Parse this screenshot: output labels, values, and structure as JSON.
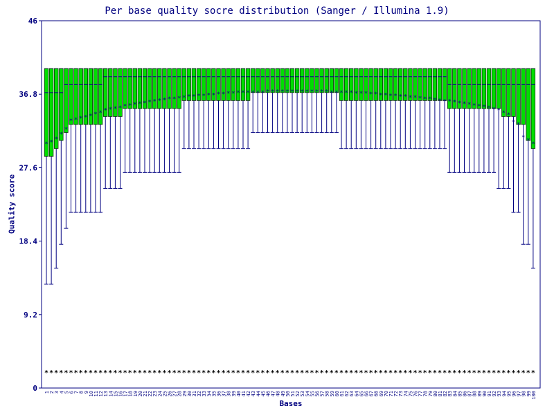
{
  "chart_data": {
    "type": "box",
    "title": "Per base quality socre distribution (Sanger / Illumina 1.9)",
    "xlabel": "Bases",
    "ylabel": "Quality score",
    "ylim": [
      0,
      46
    ],
    "yticks": [
      "0",
      "9.2",
      "18.4",
      "27.6",
      "36.8",
      "46"
    ],
    "categories": [
      "1",
      "2",
      "3",
      "4",
      "5",
      "6",
      "7",
      "8",
      "9",
      "10",
      "11",
      "12",
      "13",
      "14",
      "15",
      "16",
      "17",
      "18",
      "19",
      "20",
      "21",
      "22",
      "23",
      "24",
      "25",
      "26",
      "27",
      "28",
      "29",
      "30",
      "31",
      "32",
      "33",
      "34",
      "35",
      "36",
      "37",
      "38",
      "39",
      "40",
      "41",
      "42",
      "43",
      "44",
      "45",
      "46",
      "47",
      "48",
      "49",
      "50",
      "51",
      "52",
      "53",
      "54",
      "55",
      "56",
      "57",
      "58",
      "59",
      "60",
      "61",
      "62",
      "63",
      "64",
      "65",
      "66",
      "67",
      "68",
      "69",
      "70",
      "71",
      "72",
      "73",
      "74",
      "75",
      "76",
      "77",
      "78",
      "79",
      "80",
      "81",
      "82",
      "83",
      "84",
      "85",
      "86",
      "87",
      "88",
      "89",
      "90",
      "91",
      "92",
      "93",
      "94",
      "95",
      "96",
      "97",
      "98",
      "99",
      "100"
    ],
    "series": [
      {
        "name": "",
        "values": {
          "q1": [
            29,
            29,
            30,
            31,
            32,
            33,
            33,
            33,
            33,
            33,
            33,
            33,
            34,
            34,
            34,
            34,
            35,
            35,
            35,
            35,
            35,
            35,
            35,
            35,
            35,
            35,
            35,
            35,
            36,
            36,
            36,
            36,
            36,
            36,
            36,
            36,
            36,
            36,
            36,
            36,
            36,
            36,
            37,
            37,
            37,
            37,
            37,
            37,
            37,
            37,
            37,
            37,
            37,
            37,
            37,
            37,
            37,
            37,
            37,
            37,
            36,
            36,
            36,
            36,
            36,
            36,
            36,
            36,
            36,
            36,
            36,
            36,
            36,
            36,
            36,
            36,
            36,
            36,
            36,
            36,
            36,
            36,
            35,
            35,
            35,
            35,
            35,
            35,
            35,
            35,
            35,
            35,
            35,
            34,
            34,
            34,
            33,
            33,
            31,
            30
          ],
          "median": [
            37,
            37,
            37,
            37,
            38,
            38,
            38,
            38,
            38,
            38,
            38,
            38,
            39,
            39,
            39,
            39,
            39,
            39,
            39,
            39,
            39,
            39,
            39,
            39,
            39,
            39,
            39,
            39,
            39,
            39,
            39,
            39,
            39,
            39,
            39,
            39,
            39,
            39,
            39,
            39,
            39,
            39,
            39,
            39,
            39,
            39,
            39,
            39,
            39,
            39,
            39,
            39,
            39,
            39,
            39,
            39,
            39,
            39,
            39,
            39,
            39,
            39,
            39,
            39,
            39,
            39,
            39,
            39,
            39,
            39,
            39,
            39,
            39,
            39,
            39,
            39,
            39,
            39,
            39,
            39,
            39,
            39,
            38,
            38,
            38,
            38,
            38,
            38,
            38,
            38,
            38,
            38,
            38,
            38,
            38,
            38,
            38,
            38,
            38,
            38
          ],
          "q3": [
            40,
            40,
            40,
            40,
            40,
            40,
            40,
            40,
            40,
            40,
            40,
            40,
            40,
            40,
            40,
            40,
            40,
            40,
            40,
            40,
            40,
            40,
            40,
            40,
            40,
            40,
            40,
            40,
            40,
            40,
            40,
            40,
            40,
            40,
            40,
            40,
            40,
            40,
            40,
            40,
            40,
            40,
            40,
            40,
            40,
            40,
            40,
            40,
            40,
            40,
            40,
            40,
            40,
            40,
            40,
            40,
            40,
            40,
            40,
            40,
            40,
            40,
            40,
            40,
            40,
            40,
            40,
            40,
            40,
            40,
            40,
            40,
            40,
            40,
            40,
            40,
            40,
            40,
            40,
            40,
            40,
            40,
            40,
            40,
            40,
            40,
            40,
            40,
            40,
            40,
            40,
            40,
            40,
            40,
            40,
            40,
            40,
            40,
            40,
            40
          ],
          "p10": [
            13,
            13,
            15,
            18,
            20,
            22,
            22,
            22,
            22,
            22,
            22,
            22,
            25,
            25,
            25,
            25,
            27,
            27,
            27,
            27,
            27,
            27,
            27,
            27,
            27,
            27,
            27,
            27,
            30,
            30,
            30,
            30,
            30,
            30,
            30,
            30,
            30,
            30,
            30,
            30,
            30,
            30,
            32,
            32,
            32,
            32,
            32,
            32,
            32,
            32,
            32,
            32,
            32,
            32,
            32,
            32,
            32,
            32,
            32,
            32,
            30,
            30,
            30,
            30,
            30,
            30,
            30,
            30,
            30,
            30,
            30,
            30,
            30,
            30,
            30,
            30,
            30,
            30,
            30,
            30,
            30,
            30,
            27,
            27,
            27,
            27,
            27,
            27,
            27,
            27,
            27,
            27,
            25,
            25,
            25,
            22,
            22,
            18,
            18,
            15
          ],
          "p90": [
            40,
            40,
            40,
            40,
            40,
            40,
            40,
            40,
            40,
            40,
            40,
            40,
            40,
            40,
            40,
            40,
            40,
            40,
            40,
            40,
            40,
            40,
            40,
            40,
            40,
            40,
            40,
            40,
            40,
            40,
            40,
            40,
            40,
            40,
            40,
            40,
            40,
            40,
            40,
            40,
            40,
            40,
            40,
            40,
            40,
            40,
            40,
            40,
            40,
            40,
            40,
            40,
            40,
            40,
            40,
            40,
            40,
            40,
            40,
            40,
            40,
            40,
            40,
            40,
            40,
            40,
            40,
            40,
            40,
            40,
            40,
            40,
            40,
            40,
            40,
            40,
            40,
            40,
            40,
            40,
            40,
            40,
            40,
            40,
            40,
            40,
            40,
            40,
            40,
            40,
            40,
            40,
            40,
            40,
            40,
            40,
            40,
            40,
            40,
            40
          ],
          "mean": [
            30.6,
            30.8,
            31.2,
            31.8,
            32.4,
            33.5,
            33.6,
            33.8,
            33.9,
            34.1,
            34.3,
            34.5,
            34.8,
            34.9,
            35.0,
            35.1,
            35.3,
            35.4,
            35.5,
            35.6,
            35.7,
            35.8,
            35.9,
            36.0,
            36.1,
            36.2,
            36.2,
            36.3,
            36.4,
            36.5,
            36.5,
            36.6,
            36.6,
            36.7,
            36.7,
            36.8,
            36.8,
            36.9,
            36.9,
            37.0,
            37.0,
            37.0,
            37.0,
            37.0,
            37.0,
            37.1,
            37.1,
            37.1,
            37.1,
            37.1,
            37.1,
            37.1,
            37.1,
            37.1,
            37.1,
            37.1,
            37.1,
            37.1,
            37.0,
            37.0,
            37.0,
            37.0,
            37.0,
            36.9,
            36.9,
            36.9,
            36.8,
            36.8,
            36.7,
            36.7,
            36.6,
            36.6,
            36.5,
            36.5,
            36.4,
            36.4,
            36.3,
            36.2,
            36.2,
            36.1,
            36.0,
            35.9,
            35.9,
            35.8,
            35.7,
            35.6,
            35.5,
            35.4,
            35.3,
            35.2,
            35.1,
            34.9,
            34.8,
            34.5,
            34.2,
            33.3,
            33.0,
            31.4,
            31.0,
            30.6
          ],
          "low_marker": [
            2,
            2,
            2,
            2,
            2,
            2,
            2,
            2,
            2,
            2,
            2,
            2,
            2,
            2,
            2,
            2,
            2,
            2,
            2,
            2,
            2,
            2,
            2,
            2,
            2,
            2,
            2,
            2,
            2,
            2,
            2,
            2,
            2,
            2,
            2,
            2,
            2,
            2,
            2,
            2,
            2,
            2,
            2,
            2,
            2,
            2,
            2,
            2,
            2,
            2,
            2,
            2,
            2,
            2,
            2,
            2,
            2,
            2,
            2,
            2,
            2,
            2,
            2,
            2,
            2,
            2,
            2,
            2,
            2,
            2,
            2,
            2,
            2,
            2,
            2,
            2,
            2,
            2,
            2,
            2,
            2,
            2,
            2,
            2,
            2,
            2,
            2,
            2,
            2,
            2,
            2,
            2,
            2,
            2,
            2,
            2,
            2,
            2,
            2,
            2
          ]
        }
      }
    ],
    "grid": false,
    "colors": {
      "box": "#00dd00",
      "whisker": "#000080",
      "axis": "#000080",
      "mean": "#000080",
      "median": "#000080"
    }
  }
}
